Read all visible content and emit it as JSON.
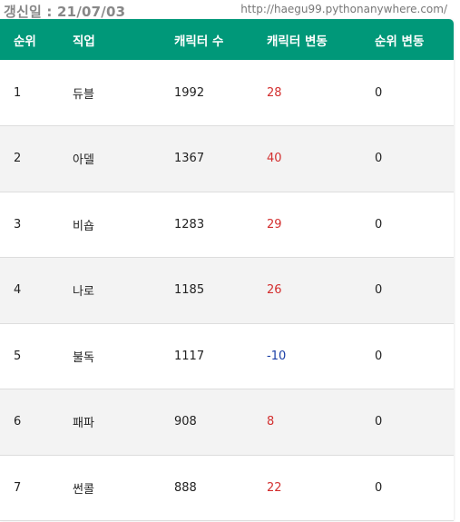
{
  "header": {
    "updated_label": "갱신일 : 21/07/03",
    "url": "http://haegu99.pythonanywhere.com/"
  },
  "table": {
    "columns": [
      "순위",
      "직업",
      "캐릭터 수",
      "캐릭터 변동",
      "순위 변동"
    ],
    "rows": [
      {
        "rank": "1",
        "job": "듀블",
        "count": "1992",
        "change": "28",
        "rank_change": "0"
      },
      {
        "rank": "2",
        "job": "아델",
        "count": "1367",
        "change": "40",
        "rank_change": "0"
      },
      {
        "rank": "3",
        "job": "비숍",
        "count": "1283",
        "change": "29",
        "rank_change": "0"
      },
      {
        "rank": "4",
        "job": "나로",
        "count": "1185",
        "change": "26",
        "rank_change": "0"
      },
      {
        "rank": "5",
        "job": "불독",
        "count": "1117",
        "change": "-10",
        "rank_change": "0"
      },
      {
        "rank": "6",
        "job": "패파",
        "count": "908",
        "change": "8",
        "rank_change": "0"
      },
      {
        "rank": "7",
        "job": "썬콜",
        "count": "888",
        "change": "22",
        "rank_change": "0"
      }
    ]
  },
  "colors": {
    "header_bg": "#009879",
    "positive_change": "#d32f2f",
    "negative_change": "#1a3fa6",
    "stripe": "#f3f3f3"
  }
}
